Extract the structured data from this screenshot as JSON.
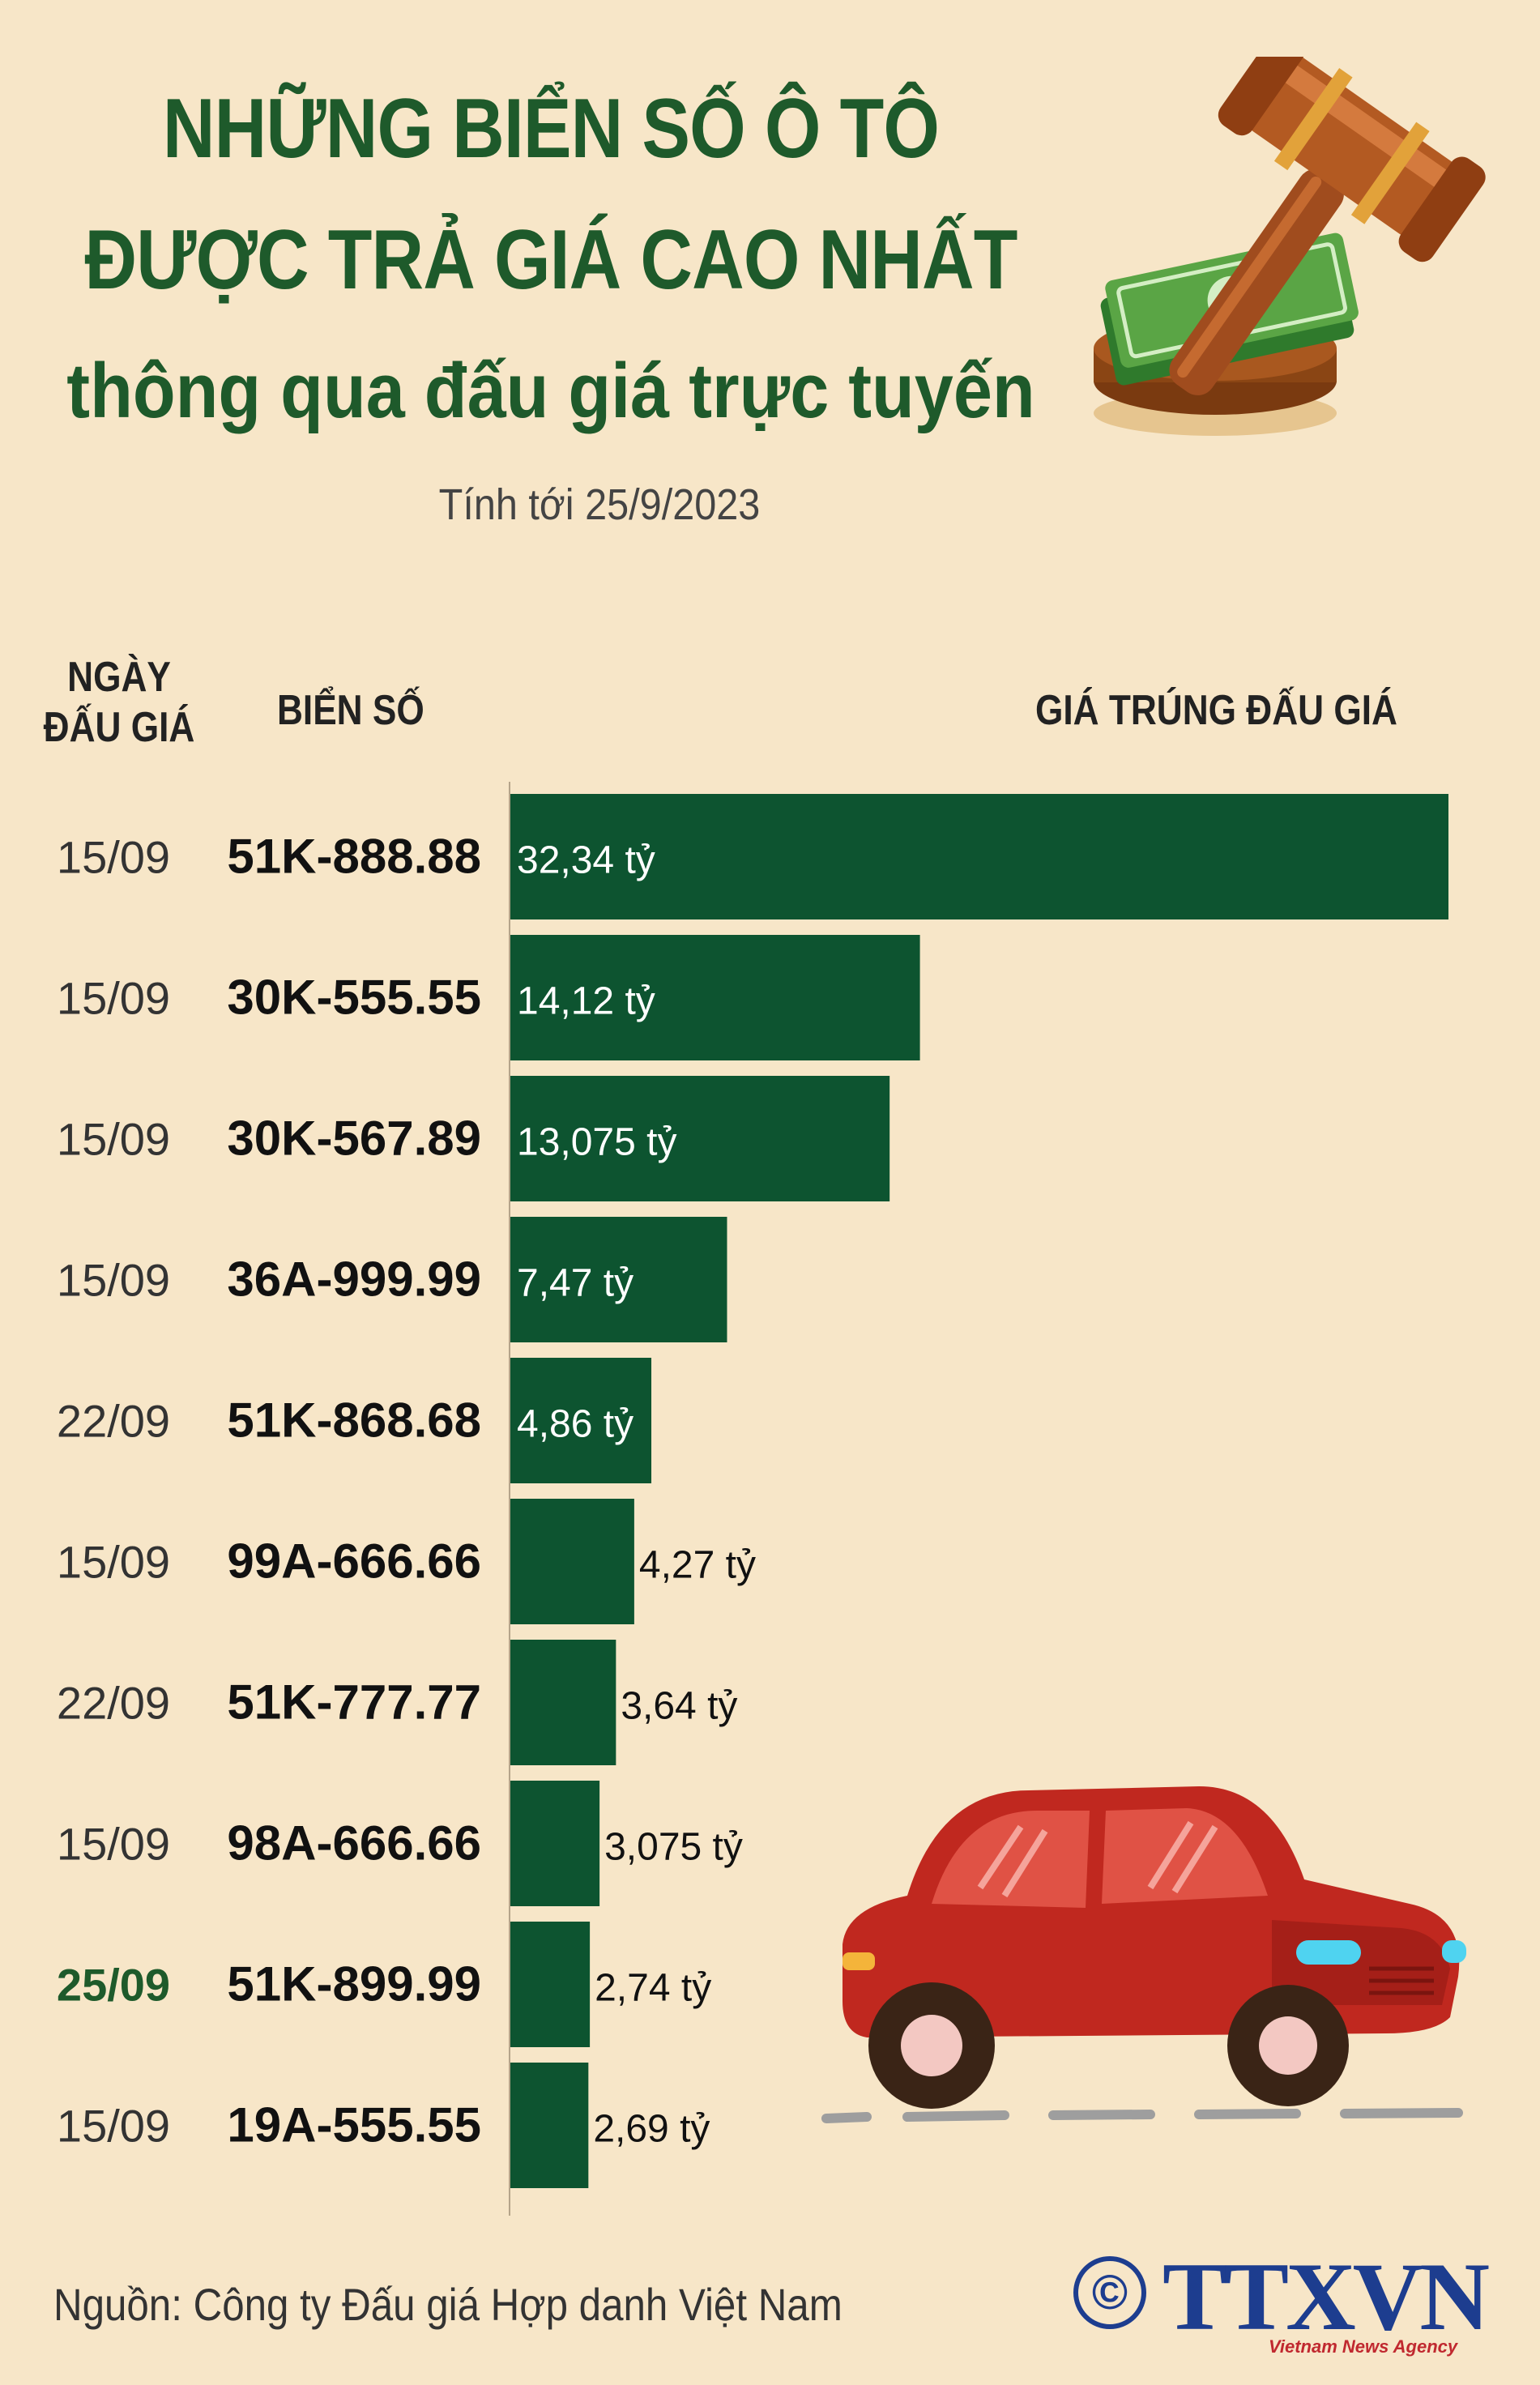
{
  "title": {
    "line1": "NHỮNG BIỂN SỐ Ô TÔ",
    "line2": "ĐƯỢC TRẢ GIÁ CAO NHẤT",
    "line3": "thông qua đấu giá trực tuyến"
  },
  "subtitle": "Tính tới 25/9/2023",
  "headers": {
    "date": "NGÀY ĐẤU GIÁ",
    "plate": "BIỂN SỐ",
    "price": "GIÁ TRÚNG ĐẤU GIÁ"
  },
  "colors": {
    "bar": "#0d5430",
    "highlight_date": "#1e5a2b",
    "title": "#1e5a2b"
  },
  "chart_data": {
    "type": "bar",
    "orientation": "horizontal",
    "unit": "tỷ",
    "categories": [
      "51K-888.88",
      "30K-555.55",
      "30K-567.89",
      "36A-999.99",
      "51K-868.68",
      "99A-666.66",
      "51K-777.77",
      "98A-666.66",
      "51K-899.99",
      "19A-555.55"
    ],
    "dates": [
      "15/09",
      "15/09",
      "15/09",
      "15/09",
      "22/09",
      "15/09",
      "22/09",
      "15/09",
      "25/09",
      "15/09"
    ],
    "values": [
      32.34,
      14.12,
      13.075,
      7.47,
      4.86,
      4.27,
      3.64,
      3.075,
      2.74,
      2.69
    ],
    "labels": [
      "32,34 tỷ",
      "14,12 tỷ",
      "13,075 tỷ",
      "7,47 tỷ",
      "4,86 tỷ",
      "4,27 tỷ",
      "3,64 tỷ",
      "3,075 tỷ",
      "2,74 tỷ",
      "2,69 tỷ"
    ],
    "highlight": [
      "25/09"
    ]
  },
  "source": "Nguồn: Công ty Đấu giá Hợp danh Việt Nam",
  "logo": {
    "copyright": "©",
    "name": "TTXVN",
    "tagline": "Vietnam News Agency"
  }
}
